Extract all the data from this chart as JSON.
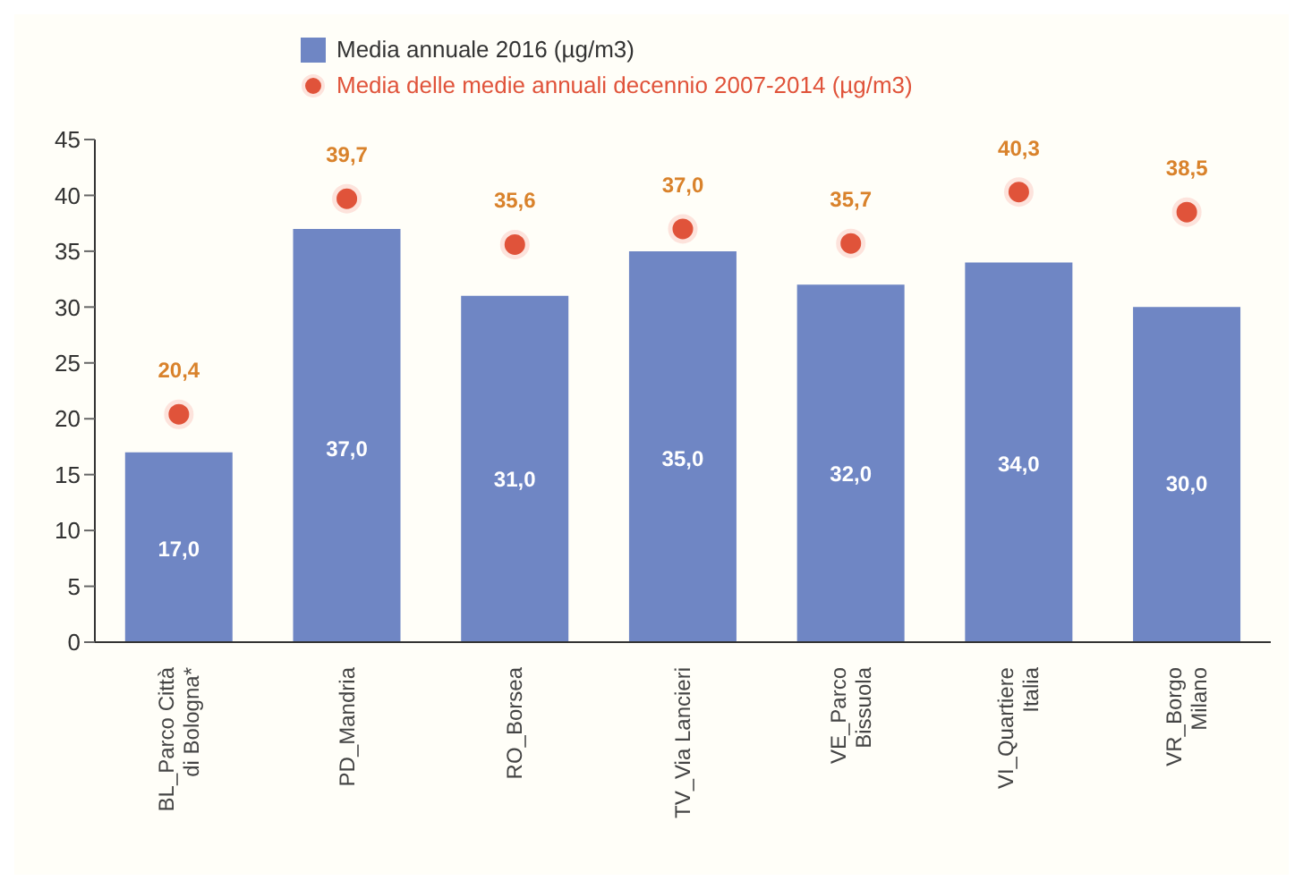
{
  "chart_data": {
    "type": "bar",
    "categories": [
      "BL_Parco Città\ndi Bologna*",
      "PD_Mandria",
      "RO_Borsea",
      "TV_Via Lancieri",
      "VE_Parco\nBissuola",
      "VI_Quartiere\nItalia",
      "VR_Borgo\nMilano"
    ],
    "series": [
      {
        "name": "Media annuale 2016 (µg/m3)",
        "color": "#6f86c4",
        "values": [
          17,
          37,
          31,
          35,
          32,
          34,
          30
        ],
        "value_labels": [
          "17,0",
          "37,0",
          "31,0",
          "35,0",
          "32,0",
          "34,0",
          "30,0"
        ]
      },
      {
        "name": "Media delle medie annuali decennio 2007-2014 (µg/m3)",
        "type": "scatter",
        "color": "#e0533a",
        "values": [
          20.4,
          39.7,
          35.6,
          37.0,
          35.7,
          40.3,
          38.5
        ],
        "value_labels": [
          "20,4",
          "39,7",
          "35,6",
          "37,0",
          "35,7",
          "40,3",
          "38,5"
        ]
      }
    ],
    "ylim": [
      0,
      45
    ],
    "yticks": [
      0,
      5,
      10,
      15,
      20,
      25,
      30,
      35,
      40,
      45
    ],
    "grid": false,
    "legend": "top left",
    "marker": "circle"
  }
}
